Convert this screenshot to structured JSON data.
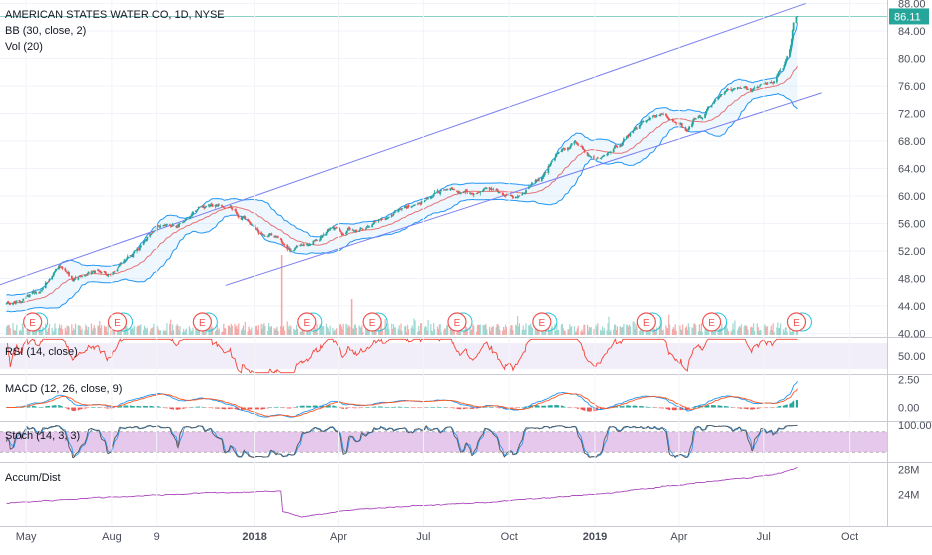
{
  "header": {
    "title": "AMERICAN STATES WATER CO, 1D, NYSE",
    "bb": "BB (30, close, 2)",
    "vol": "Vol (20)"
  },
  "pane_labels": {
    "rsi": "RSI (14, close)",
    "macd": "MACD (12, 26, close, 9)",
    "stoch": "Stoch (14, 3, 3)",
    "ad": "Accum/Dist"
  },
  "earnings_marker": "E",
  "last_price_label": "86.11",
  "colors": {
    "up": "#26a69a",
    "down": "#ef5350",
    "bb_band": "#2196f3",
    "bb_basis": "#e57373",
    "channel": "#7b7ff0",
    "rsi": "#f44336",
    "macd": "#2196f3",
    "signal": "#ff5722",
    "stoch_k": "#555555",
    "stoch_d": "#2196f3",
    "stoch_fill": "#e1bee7",
    "ad": "#ab47bc",
    "last_price_bg": "#26a69a"
  },
  "chart_data": [
    {
      "type": "candlestick",
      "title": "AMERICAN STATES WATER CO, 1D, NYSE",
      "x_ticks": [
        "May",
        "Aug",
        "9",
        "2018",
        "Apr",
        "Jul",
        "Oct",
        "2019",
        "Apr",
        "Jul",
        "Oct"
      ],
      "y_ticks": [
        40.0,
        44.0,
        48.0,
        52.0,
        56.0,
        60.0,
        64.0,
        68.0,
        72.0,
        76.0,
        80.0,
        84.0,
        88.0
      ],
      "ylim": [
        39.5,
        88.5
      ],
      "price_path": [
        {
          "x": "2017-04-10",
          "y": 44.2
        },
        {
          "x": "2017-05-01",
          "y": 45.2
        },
        {
          "x": "2017-05-15",
          "y": 46.0
        },
        {
          "x": "2017-06-05",
          "y": 49.5
        },
        {
          "x": "2017-06-20",
          "y": 48.2
        },
        {
          "x": "2017-07-10",
          "y": 48.8
        },
        {
          "x": "2017-08-01",
          "y": 49.2
        },
        {
          "x": "2017-08-20",
          "y": 51.5
        },
        {
          "x": "2017-09-05",
          "y": 53.5
        },
        {
          "x": "2017-09-20",
          "y": 55.5
        },
        {
          "x": "2017-10-10",
          "y": 56.0
        },
        {
          "x": "2017-10-30",
          "y": 57.5
        },
        {
          "x": "2017-11-15",
          "y": 58.5
        },
        {
          "x": "2017-12-01",
          "y": 58.0
        },
        {
          "x": "2017-12-20",
          "y": 57.2
        },
        {
          "x": "2018-01-05",
          "y": 55.0
        },
        {
          "x": "2018-01-25",
          "y": 54.0
        },
        {
          "x": "2018-02-08",
          "y": 52.0
        },
        {
          "x": "2018-02-25",
          "y": 53.0
        },
        {
          "x": "2018-03-15",
          "y": 54.5
        },
        {
          "x": "2018-04-05",
          "y": 54.5
        },
        {
          "x": "2018-04-25",
          "y": 55.5
        },
        {
          "x": "2018-05-15",
          "y": 56.5
        },
        {
          "x": "2018-06-05",
          "y": 58.0
        },
        {
          "x": "2018-06-25",
          "y": 59.0
        },
        {
          "x": "2018-07-15",
          "y": 60.5
        },
        {
          "x": "2018-08-05",
          "y": 61.0
        },
        {
          "x": "2018-08-25",
          "y": 60.0
        },
        {
          "x": "2018-09-15",
          "y": 61.0
        },
        {
          "x": "2018-10-05",
          "y": 59.5
        },
        {
          "x": "2018-10-25",
          "y": 61.5
        },
        {
          "x": "2018-11-10",
          "y": 64.0
        },
        {
          "x": "2018-11-25",
          "y": 67.0
        },
        {
          "x": "2018-12-10",
          "y": 68.0
        },
        {
          "x": "2018-12-25",
          "y": 66.0
        },
        {
          "x": "2019-01-10",
          "y": 66.0
        },
        {
          "x": "2019-01-30",
          "y": 67.5
        },
        {
          "x": "2019-02-15",
          "y": 70.0
        },
        {
          "x": "2019-03-05",
          "y": 72.0
        },
        {
          "x": "2019-03-25",
          "y": 71.0
        },
        {
          "x": "2019-04-10",
          "y": 70.0
        },
        {
          "x": "2019-04-25",
          "y": 71.5
        },
        {
          "x": "2019-05-10",
          "y": 73.5
        },
        {
          "x": "2019-05-25",
          "y": 75.0
        },
        {
          "x": "2019-06-10",
          "y": 75.5
        },
        {
          "x": "2019-06-25",
          "y": 76.0
        },
        {
          "x": "2019-07-10",
          "y": 76.5
        },
        {
          "x": "2019-07-22",
          "y": 79.0
        },
        {
          "x": "2019-07-30",
          "y": 82.0
        },
        {
          "x": "2019-08-02",
          "y": 85.0
        },
        {
          "x": "2019-08-06",
          "y": 86.1
        }
      ],
      "last_close": 86.11,
      "bollinger": {
        "period": 30,
        "source": "close",
        "stddev": 2
      },
      "channel_lines": [
        {
          "from": {
            "x": "2017-04-01",
            "y": 47.0
          },
          "to": {
            "x": "2019-08-15",
            "y": 88.0
          }
        },
        {
          "from": {
            "x": "2017-12-01",
            "y": 47.0
          },
          "to": {
            "x": "2019-09-01",
            "y": 75.0
          }
        }
      ],
      "volume_spikes": [
        {
          "x": "2018-01-30",
          "height_fraction": 1.0
        },
        {
          "x": "2018-04-15",
          "height_fraction": 0.45
        }
      ],
      "earnings_dates": [
        "2017-05-08",
        "2017-08-07",
        "2017-11-06",
        "2018-02-26",
        "2018-05-07",
        "2018-08-06",
        "2018-11-05",
        "2019-02-25",
        "2019-05-06",
        "2019-08-05"
      ]
    },
    {
      "type": "line",
      "name": "RSI (14, close)",
      "y_ticks": [
        50.0
      ],
      "ylim": [
        22,
        78
      ],
      "band": [
        30,
        70
      ],
      "latest": 75
    },
    {
      "type": "line",
      "name": "MACD (12, 26, close, 9)",
      "y_ticks": [
        2.5,
        0.0
      ],
      "ylim": [
        -1.2,
        2.9
      ],
      "latest": 2.3
    },
    {
      "type": "line",
      "name": "Stoch (14, 3, 3)",
      "y_ticks": [
        100.0
      ],
      "ylim": [
        0,
        100
      ],
      "band": [
        20,
        80
      ]
    },
    {
      "type": "line",
      "name": "Accum/Dist",
      "y_ticks": [
        "28M",
        "24M"
      ],
      "ylim_millions": [
        19.0,
        29.0
      ],
      "path_millions": [
        {
          "x": "2017-04-10",
          "y": 22.6
        },
        {
          "x": "2017-07-01",
          "y": 23.4
        },
        {
          "x": "2017-11-01",
          "y": 24.2
        },
        {
          "x": "2018-01-29",
          "y": 24.5
        },
        {
          "x": "2018-01-31",
          "y": 21.3
        },
        {
          "x": "2018-02-20",
          "y": 20.5
        },
        {
          "x": "2018-05-01",
          "y": 21.8
        },
        {
          "x": "2018-09-01",
          "y": 22.7
        },
        {
          "x": "2019-01-01",
          "y": 24.0
        },
        {
          "x": "2019-05-01",
          "y": 26.0
        },
        {
          "x": "2019-07-15",
          "y": 27.2
        },
        {
          "x": "2019-08-06",
          "y": 28.3
        }
      ]
    }
  ]
}
